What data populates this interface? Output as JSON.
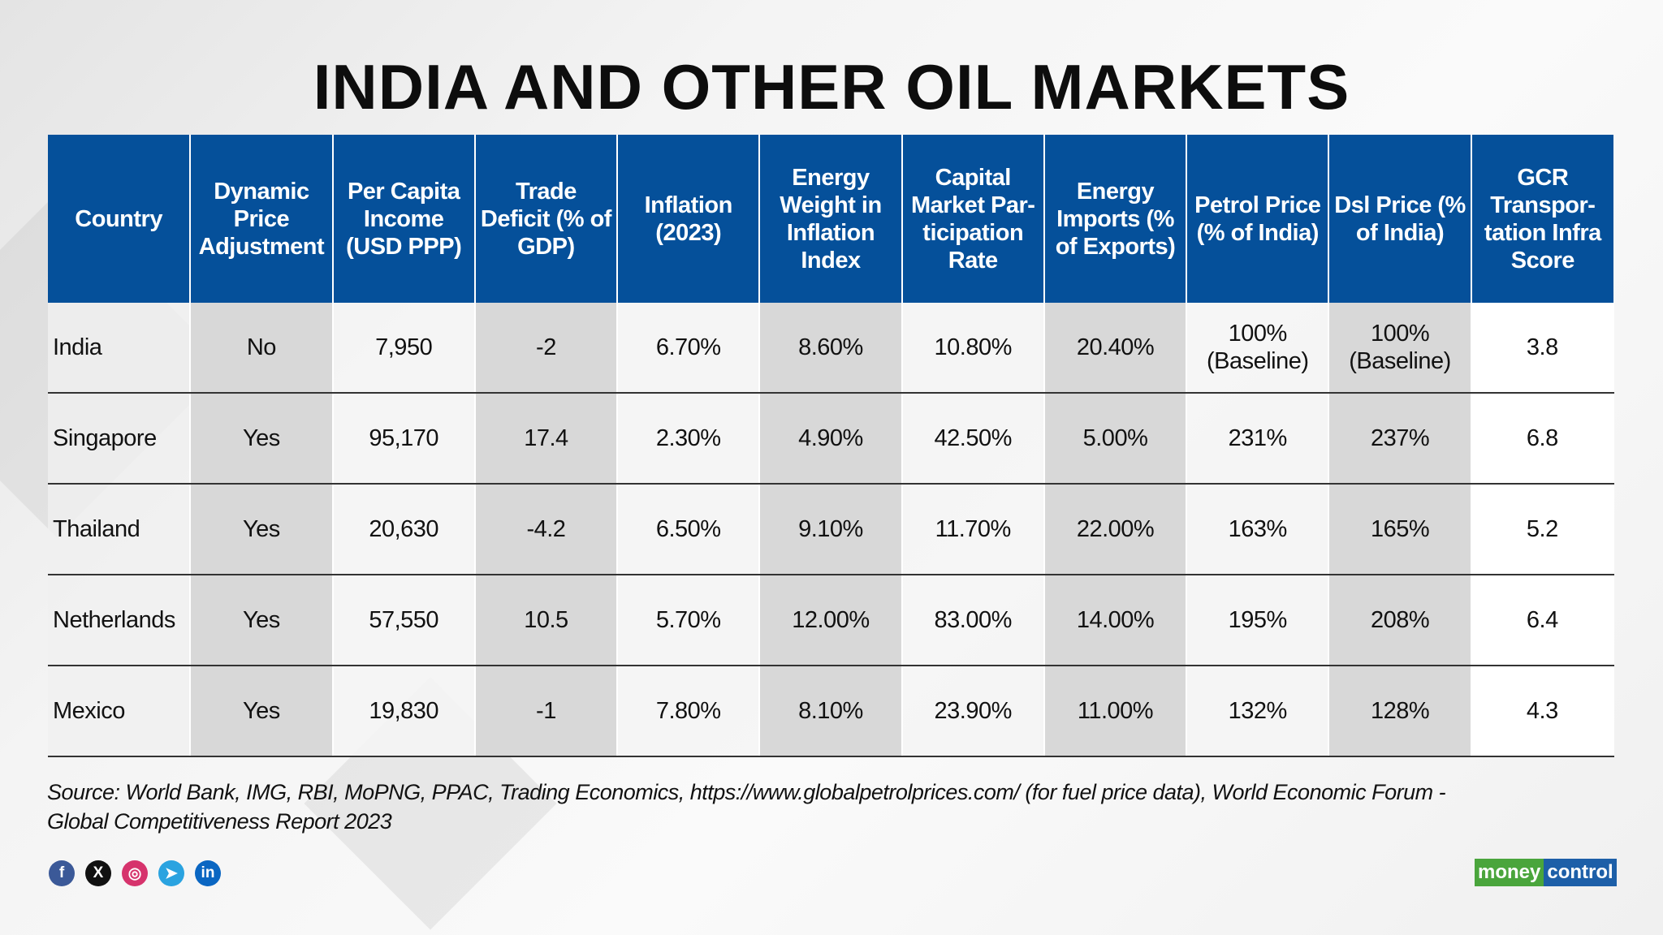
{
  "title": "INDIA AND OTHER OIL MARKETS",
  "table": {
    "headers": [
      "Country",
      "Dynamic Price Adjustment",
      "Per Capita Income (USD PPP)",
      "Trade Deficit (% of GDP)",
      "Inflation (2023)",
      "Energy Weight in Inflation Index",
      "Capital Market Par-ticipation Rate",
      "Energy Imports (% of Exports)",
      "Petrol Price (% of India)",
      "Dsl Price (% of India)",
      "GCR Transpor-tation Infra Score"
    ],
    "rows": [
      [
        "India",
        "No",
        "7,950",
        "-2",
        "6.70%",
        "8.60%",
        "10.80%",
        "20.40%",
        "100% (Baseline)",
        "100% (Baseline)",
        "3.8"
      ],
      [
        "Singapore",
        "Yes",
        "95,170",
        "17.4",
        "2.30%",
        "4.90%",
        "42.50%",
        "5.00%",
        "231%",
        "237%",
        "6.8"
      ],
      [
        "Thailand",
        "Yes",
        "20,630",
        "-4.2",
        "6.50%",
        "9.10%",
        "11.70%",
        "22.00%",
        "163%",
        "165%",
        "5.2"
      ],
      [
        "Netherlands",
        "Yes",
        "57,550",
        "10.5",
        "5.70%",
        "12.00%",
        "83.00%",
        "14.00%",
        "195%",
        "208%",
        "6.4"
      ],
      [
        "Mexico",
        "Yes",
        "19,830",
        "-1",
        "7.80%",
        "8.10%",
        "23.90%",
        "11.00%",
        "132%",
        "128%",
        "4.3"
      ]
    ]
  },
  "source": "Source: World Bank, IMG, RBI, MoPNG, PPAC, Trading Economics, https://www.globalpetrolprices.com/ (for fuel price data), World Economic Forum - Global Competitiveness Report 2023",
  "social": [
    {
      "icon": "facebook-icon",
      "glyph": "f",
      "color": "#3b5998"
    },
    {
      "icon": "x-icon",
      "glyph": "X",
      "color": "#111111"
    },
    {
      "icon": "instagram-icon",
      "glyph": "◎",
      "color": "#d6336c"
    },
    {
      "icon": "telegram-icon",
      "glyph": "➤",
      "color": "#2aa3e0"
    },
    {
      "icon": "linkedin-icon",
      "glyph": "in",
      "color": "#0a66c2"
    }
  ],
  "logo": {
    "part1": "money",
    "part2": "control"
  },
  "colors": {
    "header": "#05509a",
    "logo_green": "#4aa53c",
    "logo_blue": "#1d5fa8"
  }
}
